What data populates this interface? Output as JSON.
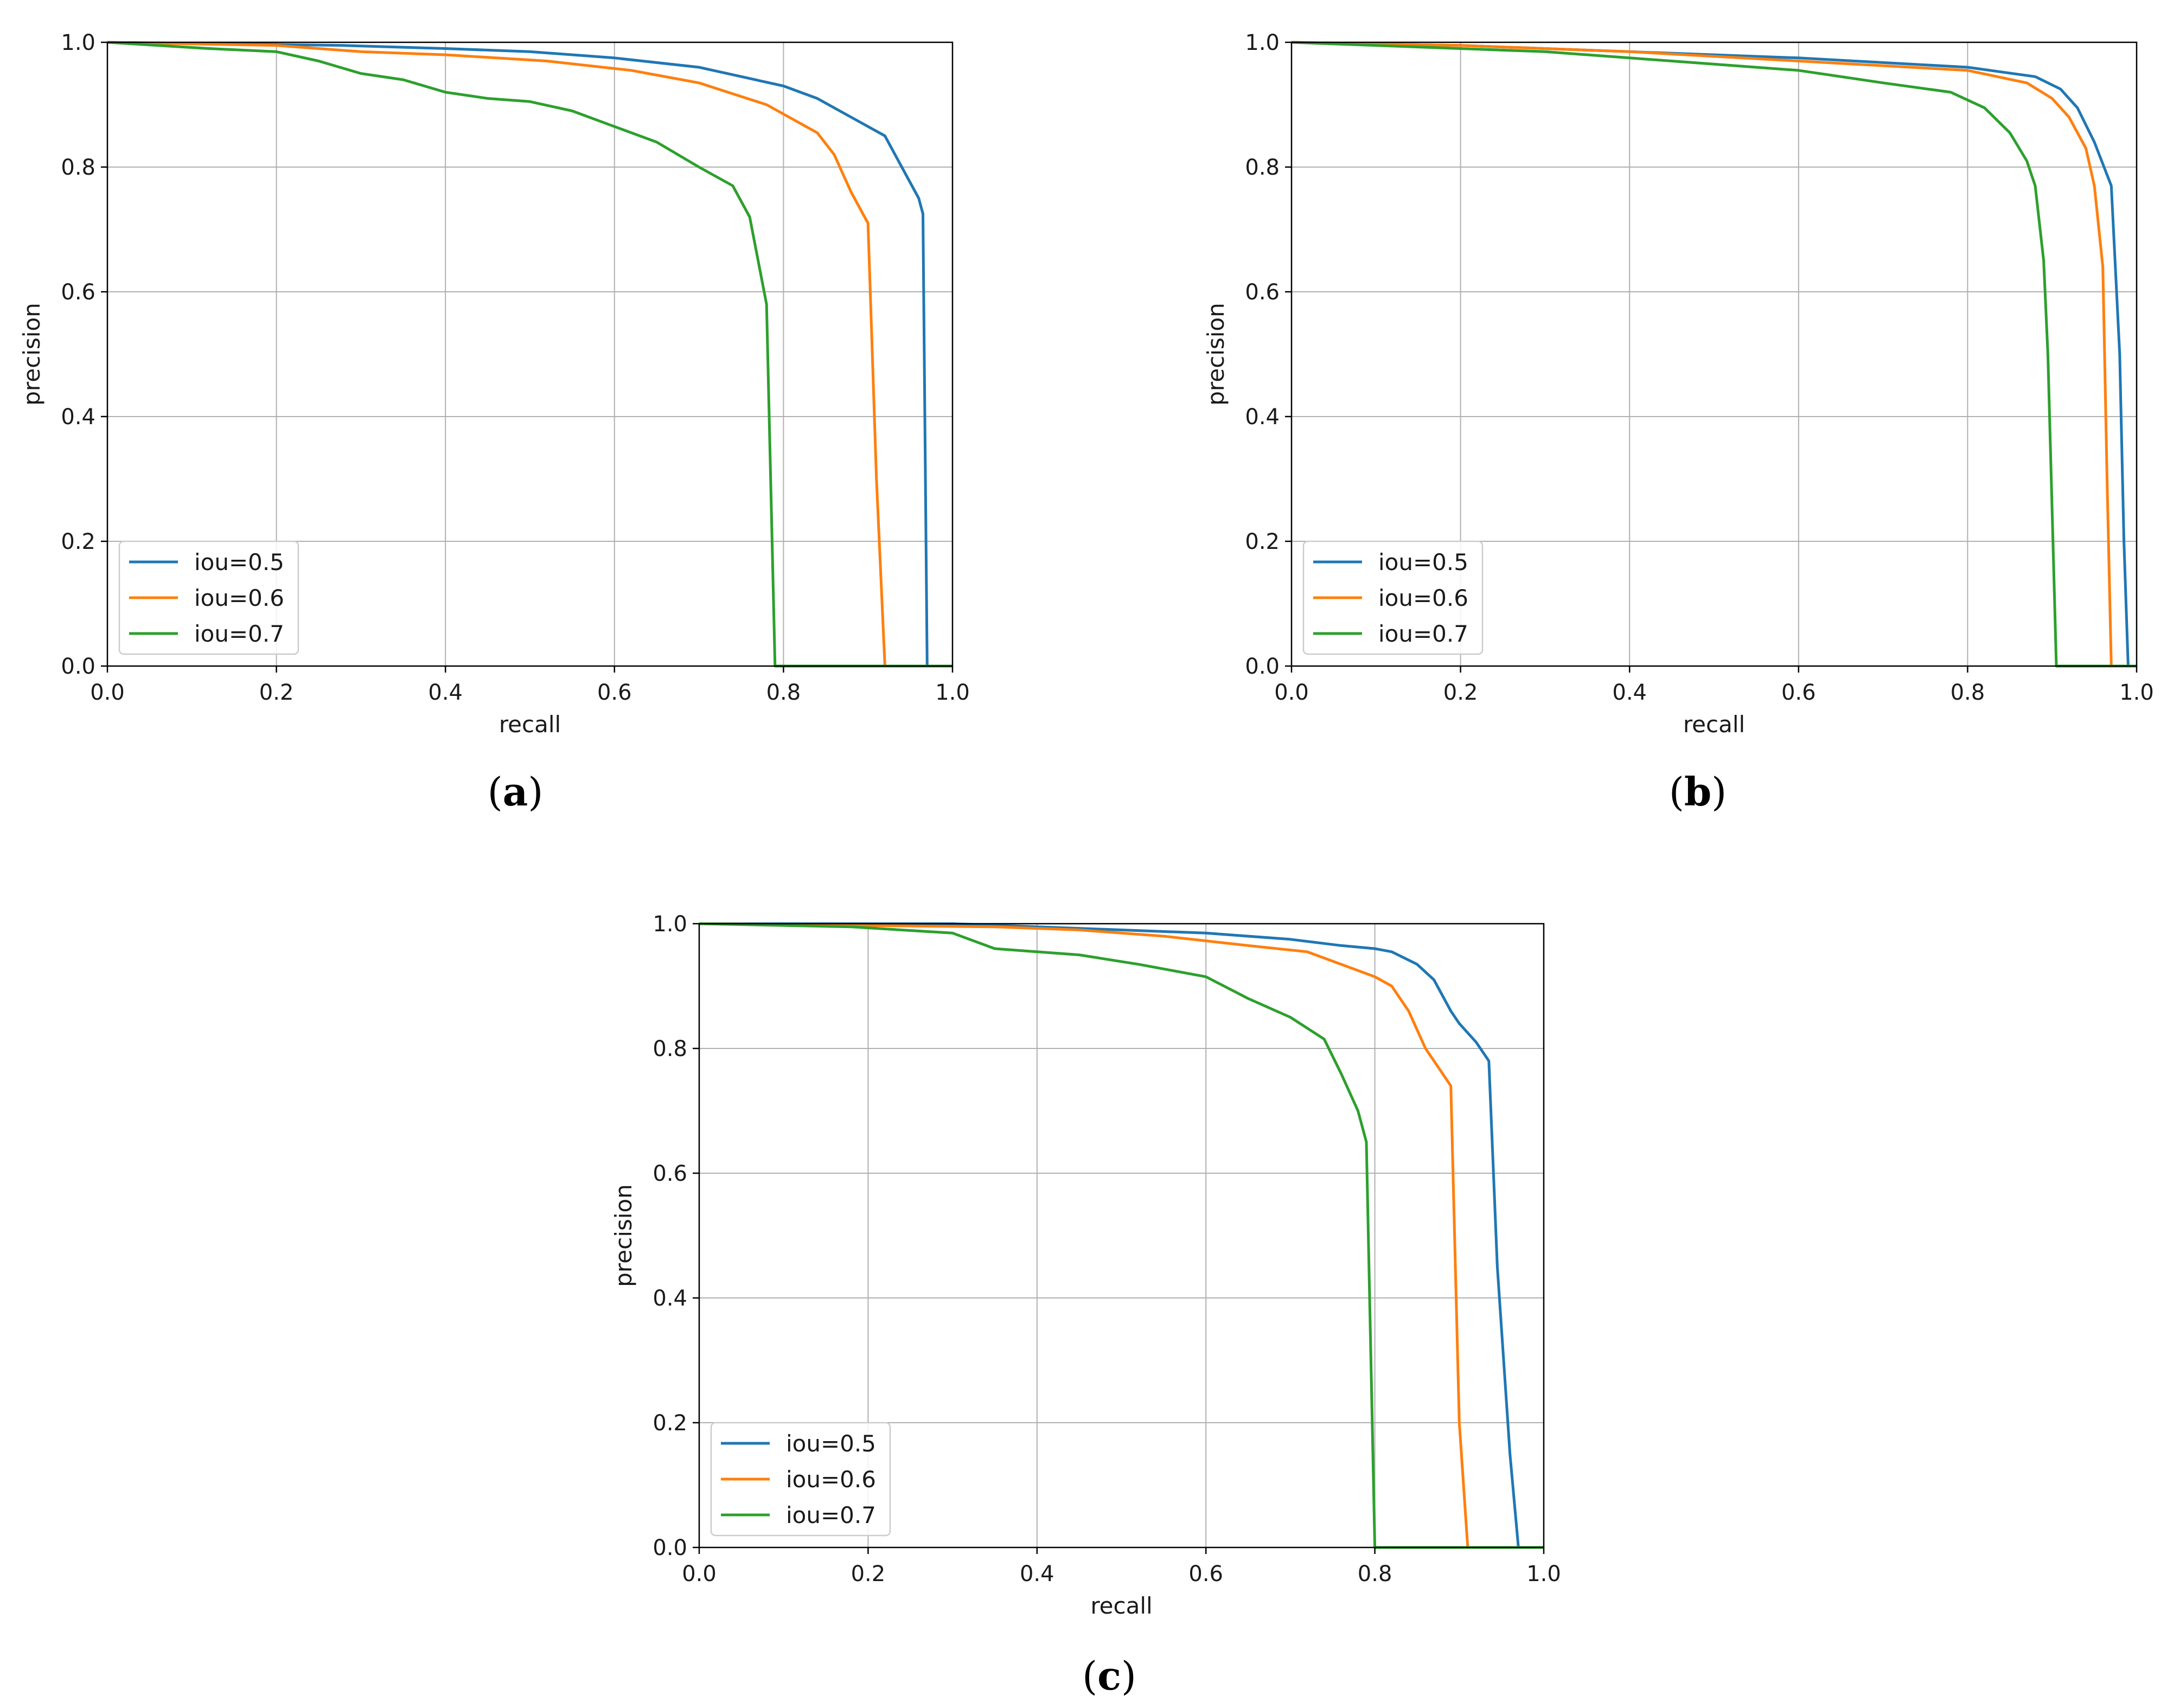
{
  "chart_data": [
    {
      "type": "line",
      "panel": "a",
      "caption": {
        "open": "(",
        "letter": "a",
        "close": ")"
      },
      "xlabel": "recall",
      "ylabel": "precision",
      "xlim": [
        0,
        1
      ],
      "ylim": [
        0,
        1
      ],
      "grid": true,
      "legend_position": "bottom-left",
      "xticks": [
        "0.0",
        "0.2",
        "0.4",
        "0.6",
        "0.8",
        "1.0"
      ],
      "yticks": [
        "0.0",
        "0.2",
        "0.4",
        "0.6",
        "0.8",
        "1.0"
      ],
      "series": [
        {
          "name": "iou=0.5",
          "color": "#1f77b4",
          "x": [
            0.0,
            0.28,
            0.4,
            0.5,
            0.6,
            0.7,
            0.8,
            0.84,
            0.88,
            0.92,
            0.94,
            0.96,
            0.965,
            0.97,
            1.0
          ],
          "y": [
            1.0,
            0.995,
            0.99,
            0.985,
            0.975,
            0.96,
            0.93,
            0.91,
            0.88,
            0.85,
            0.8,
            0.75,
            0.725,
            0.0,
            0.0
          ]
        },
        {
          "name": "iou=0.6",
          "color": "#ff7f0e",
          "x": [
            0.0,
            0.2,
            0.3,
            0.4,
            0.52,
            0.62,
            0.7,
            0.78,
            0.84,
            0.86,
            0.88,
            0.9,
            0.91,
            0.92,
            1.0
          ],
          "y": [
            1.0,
            0.995,
            0.985,
            0.98,
            0.97,
            0.955,
            0.935,
            0.9,
            0.855,
            0.82,
            0.76,
            0.71,
            0.3,
            0.0,
            0.0
          ]
        },
        {
          "name": "iou=0.7",
          "color": "#2ca02c",
          "x": [
            0.0,
            0.12,
            0.2,
            0.25,
            0.3,
            0.35,
            0.4,
            0.45,
            0.5,
            0.55,
            0.6,
            0.65,
            0.7,
            0.74,
            0.76,
            0.78,
            0.79,
            1.0
          ],
          "y": [
            1.0,
            0.99,
            0.985,
            0.97,
            0.95,
            0.94,
            0.92,
            0.91,
            0.905,
            0.89,
            0.865,
            0.84,
            0.8,
            0.77,
            0.72,
            0.58,
            0.0,
            0.0
          ]
        }
      ]
    },
    {
      "type": "line",
      "panel": "b",
      "caption": {
        "open": "(",
        "letter": "b",
        "close": ")"
      },
      "xlabel": "recall",
      "ylabel": "precision",
      "xlim": [
        0,
        1
      ],
      "ylim": [
        0,
        1
      ],
      "grid": true,
      "legend_position": "bottom-left",
      "xticks": [
        "0.0",
        "0.2",
        "0.4",
        "0.6",
        "0.8",
        "1.0"
      ],
      "yticks": [
        "0.0",
        "0.2",
        "0.4",
        "0.6",
        "0.8",
        "1.0"
      ],
      "series": [
        {
          "name": "iou=0.5",
          "color": "#1f77b4",
          "x": [
            0.0,
            0.2,
            0.4,
            0.6,
            0.8,
            0.88,
            0.91,
            0.93,
            0.95,
            0.97,
            0.98,
            0.985,
            0.99,
            1.0
          ],
          "y": [
            1.0,
            0.995,
            0.985,
            0.975,
            0.96,
            0.945,
            0.925,
            0.895,
            0.84,
            0.77,
            0.5,
            0.2,
            0.0,
            0.0
          ]
        },
        {
          "name": "iou=0.6",
          "color": "#ff7f0e",
          "x": [
            0.0,
            0.2,
            0.4,
            0.6,
            0.8,
            0.87,
            0.9,
            0.92,
            0.94,
            0.95,
            0.96,
            0.965,
            0.97,
            1.0
          ],
          "y": [
            1.0,
            0.995,
            0.985,
            0.97,
            0.955,
            0.935,
            0.91,
            0.88,
            0.83,
            0.77,
            0.64,
            0.3,
            0.0,
            0.0
          ]
        },
        {
          "name": "iou=0.7",
          "color": "#2ca02c",
          "x": [
            0.0,
            0.1,
            0.2,
            0.3,
            0.4,
            0.5,
            0.6,
            0.7,
            0.78,
            0.82,
            0.85,
            0.87,
            0.88,
            0.89,
            0.895,
            0.905,
            1.0
          ],
          "y": [
            1.0,
            0.995,
            0.99,
            0.985,
            0.975,
            0.965,
            0.955,
            0.935,
            0.92,
            0.895,
            0.855,
            0.81,
            0.77,
            0.65,
            0.5,
            0.0,
            0.0
          ]
        }
      ]
    },
    {
      "type": "line",
      "panel": "c",
      "caption": {
        "open": "(",
        "letter": "c",
        "close": ")"
      },
      "xlabel": "recall",
      "ylabel": "precision",
      "xlim": [
        0,
        1
      ],
      "ylim": [
        0,
        1
      ],
      "grid": true,
      "legend_position": "bottom-left",
      "xticks": [
        "0.0",
        "0.2",
        "0.4",
        "0.6",
        "0.8",
        "1.0"
      ],
      "yticks": [
        "0.0",
        "0.2",
        "0.4",
        "0.6",
        "0.8",
        "1.0"
      ],
      "series": [
        {
          "name": "iou=0.5",
          "color": "#1f77b4",
          "x": [
            0.0,
            0.3,
            0.5,
            0.6,
            0.7,
            0.76,
            0.8,
            0.82,
            0.85,
            0.87,
            0.89,
            0.9,
            0.92,
            0.935,
            0.945,
            0.96,
            0.97,
            1.0
          ],
          "y": [
            1.0,
            1.0,
            0.99,
            0.985,
            0.975,
            0.965,
            0.96,
            0.955,
            0.935,
            0.91,
            0.86,
            0.84,
            0.81,
            0.78,
            0.45,
            0.15,
            0.0,
            0.0
          ]
        },
        {
          "name": "iou=0.6",
          "color": "#ff7f0e",
          "x": [
            0.0,
            0.35,
            0.45,
            0.55,
            0.65,
            0.72,
            0.76,
            0.8,
            0.82,
            0.84,
            0.86,
            0.88,
            0.89,
            0.9,
            0.91,
            1.0
          ],
          "y": [
            1.0,
            0.995,
            0.99,
            0.98,
            0.965,
            0.955,
            0.935,
            0.915,
            0.9,
            0.86,
            0.8,
            0.76,
            0.74,
            0.2,
            0.0,
            0.0
          ]
        },
        {
          "name": "iou=0.7",
          "color": "#2ca02c",
          "x": [
            0.0,
            0.18,
            0.3,
            0.35,
            0.45,
            0.52,
            0.6,
            0.65,
            0.7,
            0.74,
            0.76,
            0.78,
            0.79,
            0.8,
            1.0
          ],
          "y": [
            1.0,
            0.995,
            0.985,
            0.96,
            0.95,
            0.935,
            0.915,
            0.88,
            0.85,
            0.815,
            0.76,
            0.7,
            0.65,
            0.0,
            0.0
          ]
        }
      ]
    }
  ]
}
